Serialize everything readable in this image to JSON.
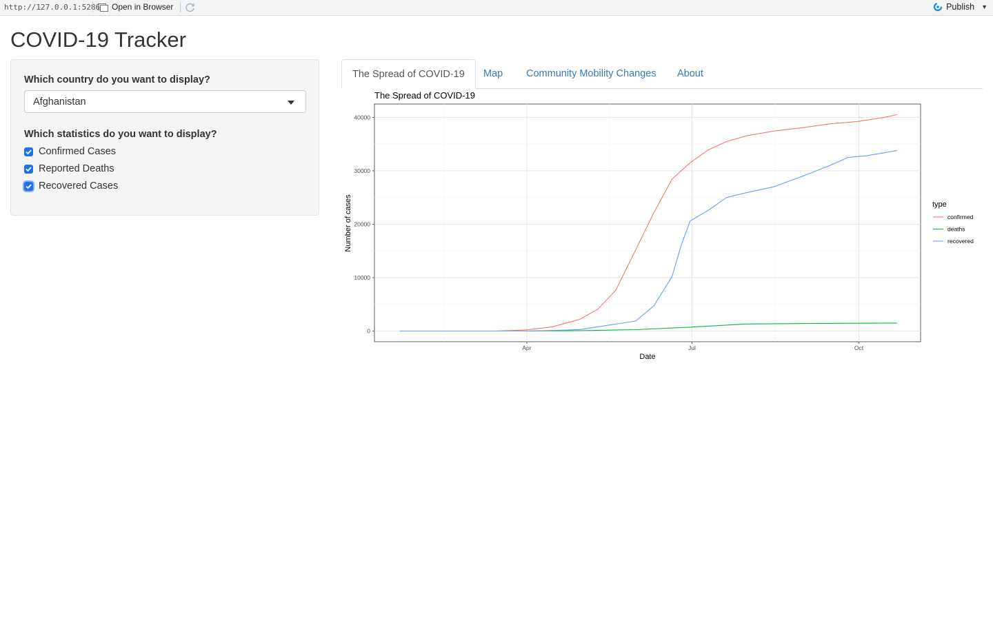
{
  "topbar": {
    "url": "http://127.0.0.1:5286",
    "open_label": "Open in Browser",
    "publish_label": "Publish"
  },
  "page": {
    "title": "COVID-19 Tracker"
  },
  "sidebar": {
    "country_label": "Which country do you want to display?",
    "country_value": "Afghanistan",
    "stats_label": "Which statistics do you want to display?",
    "checkboxes": [
      {
        "label": "Confirmed Cases",
        "checked": true
      },
      {
        "label": "Reported Deaths",
        "checked": true
      },
      {
        "label": "Recovered Cases",
        "checked": true
      }
    ]
  },
  "tabs": [
    {
      "label": "The Spread of COVID-19",
      "active": true
    },
    {
      "label": "Map",
      "active": false
    },
    {
      "label": "Community Mobility Changes",
      "active": false
    },
    {
      "label": "About",
      "active": false
    }
  ],
  "chart_data": {
    "type": "line",
    "title": "The Spread of COVID-19",
    "xlabel": "Date",
    "ylabel": "Number of cases",
    "legend_title": "type",
    "legend_position": "right",
    "grid": true,
    "x_ticks": [
      "Apr",
      "Jul",
      "Oct"
    ],
    "y_ticks": [
      0,
      10000,
      20000,
      30000,
      40000
    ],
    "x_range": [
      "2020-01-08",
      "2020-11-04"
    ],
    "y_range": [
      -2000,
      42500
    ],
    "series": [
      {
        "name": "confirmed",
        "color": "#F8766D",
        "points": [
          [
            "2020-01-22",
            0
          ],
          [
            "2020-03-01",
            1
          ],
          [
            "2020-03-15",
            16
          ],
          [
            "2020-03-31",
            174
          ],
          [
            "2020-04-15",
            784
          ],
          [
            "2020-04-30",
            2171
          ],
          [
            "2020-05-10",
            4033
          ],
          [
            "2020-05-20",
            7653
          ],
          [
            "2020-05-31",
            15205
          ],
          [
            "2020-06-10",
            22142
          ],
          [
            "2020-06-20",
            28424
          ],
          [
            "2020-06-30",
            31507
          ],
          [
            "2020-07-10",
            33908
          ],
          [
            "2020-07-20",
            35475
          ],
          [
            "2020-07-31",
            36542
          ],
          [
            "2020-08-15",
            37431
          ],
          [
            "2020-08-31",
            38070
          ],
          [
            "2020-09-15",
            38783
          ],
          [
            "2020-09-30",
            39227
          ],
          [
            "2020-10-15",
            39994
          ],
          [
            "2020-10-22",
            40510
          ]
        ]
      },
      {
        "name": "deaths",
        "color": "#00BA38",
        "points": [
          [
            "2020-01-22",
            0
          ],
          [
            "2020-03-31",
            4
          ],
          [
            "2020-04-30",
            64
          ],
          [
            "2020-05-31",
            260
          ],
          [
            "2020-06-30",
            727
          ],
          [
            "2020-07-31",
            1312
          ],
          [
            "2020-08-31",
            1402
          ],
          [
            "2020-09-30",
            1462
          ],
          [
            "2020-10-22",
            1499
          ]
        ]
      },
      {
        "name": "recovered",
        "color": "#619CFF",
        "points": [
          [
            "2020-01-22",
            0
          ],
          [
            "2020-03-31",
            5
          ],
          [
            "2020-04-15",
            99
          ],
          [
            "2020-04-30",
            274
          ],
          [
            "2020-05-15",
            1041
          ],
          [
            "2020-05-31",
            1875
          ],
          [
            "2020-06-10",
            4725
          ],
          [
            "2020-06-20",
            10174
          ],
          [
            "2020-06-25",
            16000
          ],
          [
            "2020-06-30",
            20600
          ],
          [
            "2020-07-10",
            22600
          ],
          [
            "2020-07-20",
            25000
          ],
          [
            "2020-07-31",
            25900
          ],
          [
            "2020-08-15",
            27000
          ],
          [
            "2020-08-31",
            29000
          ],
          [
            "2020-09-15",
            31000
          ],
          [
            "2020-09-25",
            32500
          ],
          [
            "2020-10-05",
            32800
          ],
          [
            "2020-10-22",
            33800
          ]
        ]
      }
    ]
  }
}
